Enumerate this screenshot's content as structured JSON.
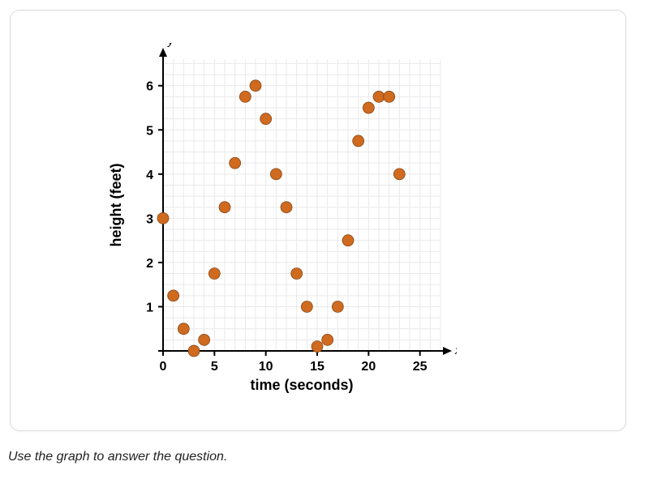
{
  "prompt_text": "Use the graph to answer the question.",
  "chart": {
    "type": "scatter",
    "x_axis_label": "time (seconds)",
    "y_axis_label": "height (feet)",
    "y_axis_symbol": "y",
    "x_axis_symbol": "x",
    "xlim": [
      0,
      27
    ],
    "ylim": [
      0,
      6.6
    ],
    "x_minor_step": 1,
    "y_minor_step": 0.25,
    "x_ticks": [
      0,
      5,
      10,
      15,
      20,
      25
    ],
    "y_ticks": [
      0,
      1,
      2,
      3,
      4,
      5,
      6
    ],
    "tick_label_fontsize": 16,
    "tick_label_fontweight": "700",
    "axis_title_fontsize": 18,
    "axis_title_fontweight": "800",
    "axis_symbol_fontsize": 14,
    "grid_color": "#e9e9ec",
    "axis_color": "#000000",
    "marker_fill": "#cf6a1f",
    "marker_stroke": "#7d3e10",
    "marker_radius": 7,
    "marker_stroke_width": 0.7,
    "background_color": "#ffffff",
    "text_color": "#000000",
    "points": [
      {
        "x": 0,
        "y": 3.0
      },
      {
        "x": 1,
        "y": 1.25
      },
      {
        "x": 2,
        "y": 0.5
      },
      {
        "x": 3,
        "y": 0.0
      },
      {
        "x": 4,
        "y": 0.25
      },
      {
        "x": 5,
        "y": 1.75
      },
      {
        "x": 6,
        "y": 3.25
      },
      {
        "x": 7,
        "y": 4.25
      },
      {
        "x": 8,
        "y": 5.75
      },
      {
        "x": 9,
        "y": 6.0
      },
      {
        "x": 10,
        "y": 5.25
      },
      {
        "x": 11,
        "y": 4.0
      },
      {
        "x": 12,
        "y": 3.25
      },
      {
        "x": 13,
        "y": 1.75
      },
      {
        "x": 14,
        "y": 1.0
      },
      {
        "x": 15,
        "y": 0.1
      },
      {
        "x": 16,
        "y": 0.25
      },
      {
        "x": 17,
        "y": 1.0
      },
      {
        "x": 18,
        "y": 2.5
      },
      {
        "x": 19,
        "y": 4.75
      },
      {
        "x": 20,
        "y": 5.5
      },
      {
        "x": 21,
        "y": 5.75
      },
      {
        "x": 22,
        "y": 5.75
      },
      {
        "x": 23,
        "y": 4.0
      }
    ]
  }
}
